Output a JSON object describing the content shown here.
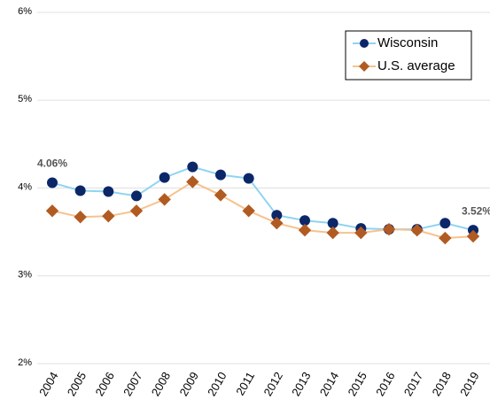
{
  "chart_data": {
    "type": "line",
    "categories": [
      "2004",
      "2005",
      "2006",
      "2007",
      "2008",
      "2009",
      "2010",
      "2011",
      "2012",
      "2013",
      "2014",
      "2015",
      "2016",
      "2017",
      "2018",
      "2019"
    ],
    "series": [
      {
        "name": "Wisconsin",
        "color": "#0c2768",
        "line_color": "#8fd4f2",
        "marker": "circle",
        "values": [
          4.06,
          3.97,
          3.96,
          3.91,
          4.12,
          4.24,
          4.15,
          4.11,
          3.69,
          3.63,
          3.6,
          3.54,
          3.53,
          3.53,
          3.6,
          3.52
        ],
        "value_labels": [
          "4.06%",
          null,
          null,
          null,
          null,
          null,
          null,
          null,
          null,
          null,
          null,
          null,
          null,
          null,
          null,
          "3.52%"
        ]
      },
      {
        "name": "U.S. average",
        "color": "#b15b22",
        "line_color": "#f6c28e",
        "marker": "diamond",
        "values": [
          3.74,
          3.67,
          3.68,
          3.74,
          3.87,
          4.07,
          3.92,
          3.74,
          3.6,
          3.52,
          3.49,
          3.49,
          3.53,
          3.52,
          3.43,
          3.45
        ]
      }
    ],
    "ylim": [
      2,
      6
    ],
    "yticks": [
      {
        "value": 2,
        "label": "2%"
      },
      {
        "value": 3,
        "label": "3%"
      },
      {
        "value": 4,
        "label": "4%"
      },
      {
        "value": 5,
        "label": "5%"
      },
      {
        "value": 6,
        "label": "6%"
      }
    ],
    "grid": true,
    "legend": "upper right"
  }
}
